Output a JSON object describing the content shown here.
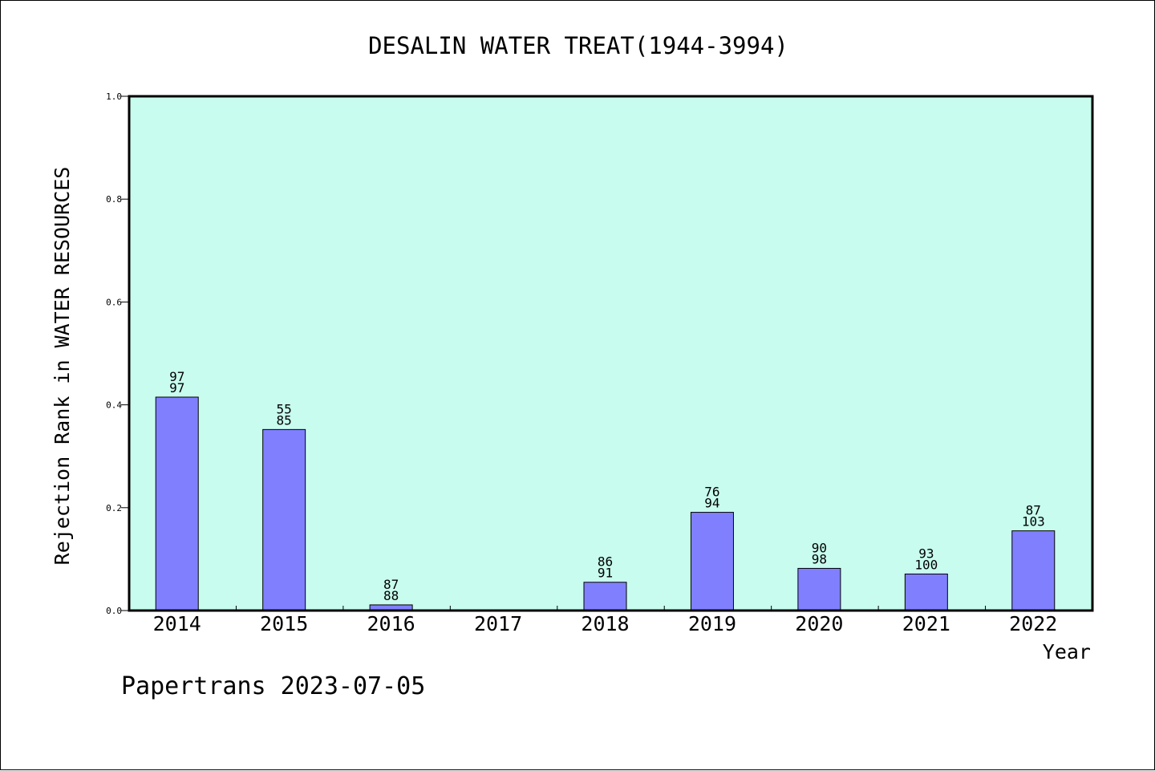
{
  "chart_data": {
    "type": "bar",
    "title": "DESALIN WATER TREAT(1944-3994)",
    "ylabel": "Rejection Rank in WATER RESOURCES",
    "xlabel": "Year",
    "ylim": [
      0,
      1.0
    ],
    "yticks": [
      "0.0",
      "0.2",
      "0.4",
      "0.6",
      "0.8",
      "1.0"
    ],
    "categories": [
      "2014",
      "2015",
      "2016",
      "2017",
      "2018",
      "2019",
      "2020",
      "2021",
      "2022"
    ],
    "values": [
      0.415,
      0.352,
      0.011,
      0,
      0.055,
      0.191,
      0.082,
      0.071,
      0.155
    ],
    "label_top": [
      "97",
      "55",
      "87",
      "",
      "86",
      "76",
      "90",
      "93",
      "87"
    ],
    "label_bottom": [
      "97",
      "85",
      "88",
      "",
      "91",
      "94",
      "98",
      "100",
      "103"
    ],
    "grid": false,
    "legend": "none",
    "colors": {
      "plot_background": "#c8fcee",
      "bar": "#8080ff",
      "bar_edge": "#000000"
    }
  },
  "footer": {
    "text": "Papertrans 2023-07-05"
  }
}
